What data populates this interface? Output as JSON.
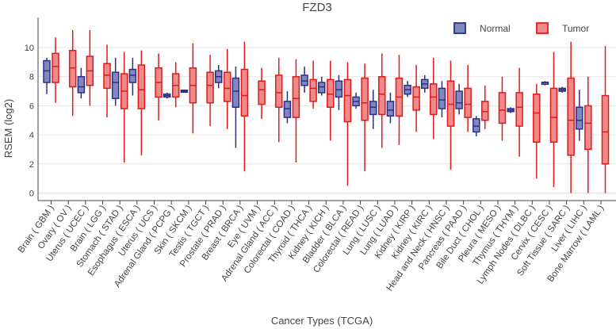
{
  "chart_data": {
    "type": "box",
    "title": "FZD3",
    "xlabel": "Cancer Types (TCGA)",
    "ylabel": "RSEM (log2)",
    "ylim": [
      -0.6,
      11.6
    ],
    "yticks": [
      0,
      2,
      4,
      6,
      8,
      10
    ],
    "grid": true,
    "legend_position": "top-right",
    "colors": {
      "normal_stroke": "#2a2f86",
      "normal_fill": "#8188c0",
      "tumor_stroke": "#e2191b",
      "tumor_fill": "#ef8a8a",
      "grid": "#e6e6e6",
      "axis": "#444444"
    },
    "series": [
      {
        "name": "Normal",
        "key": "normal"
      },
      {
        "name": "Tumor",
        "key": "tumor"
      }
    ],
    "categories": [
      {
        "label": "Brain ( GBM )",
        "normal": [
          6.8,
          7.6,
          8.4,
          9.1,
          9.3
        ],
        "tumor": [
          6.2,
          7.6,
          8.7,
          9.6,
          10.7
        ]
      },
      {
        "label": "Ovary ( OV )",
        "normal": null,
        "tumor": [
          5.3,
          7.3,
          8.6,
          9.8,
          11.2
        ]
      },
      {
        "label": "Uterus ( UCEC )",
        "normal": [
          6.5,
          6.9,
          7.3,
          8.0,
          8.6
        ],
        "tumor": [
          6.0,
          7.4,
          8.4,
          9.4,
          11.2
        ]
      },
      {
        "label": "Brain ( LGG )",
        "normal": null,
        "tumor": [
          5.2,
          7.2,
          8.1,
          8.9,
          10.2
        ]
      },
      {
        "label": "Stomach ( STAD )",
        "normal": [
          6.0,
          6.5,
          7.6,
          8.3,
          9.3
        ],
        "tumor": [
          2.1,
          5.8,
          7.0,
          8.2,
          9.7
        ]
      },
      {
        "label": "Esophagus ( ESCA )",
        "normal": [
          6.7,
          7.6,
          8.1,
          8.5,
          9.3
        ],
        "tumor": [
          2.6,
          5.8,
          7.1,
          8.8,
          9.8
        ]
      },
      {
        "label": "Uterus ( UCS )",
        "normal": null,
        "tumor": [
          5.0,
          6.6,
          7.6,
          8.6,
          9.6
        ]
      },
      {
        "label": "Adrenal Gland ( PCPG )",
        "normal": [
          6.5,
          6.6,
          6.7,
          6.8,
          6.9
        ],
        "tumor": [
          5.9,
          6.6,
          7.4,
          8.2,
          9.0
        ]
      },
      {
        "label": "Skin ( SKCM )",
        "normal": [
          7.0,
          7.0,
          7.0,
          7.0,
          7.0
        ],
        "tumor": [
          4.1,
          6.2,
          7.4,
          8.6,
          10.3
        ]
      },
      {
        "label": "Testis ( TGCT )",
        "normal": null,
        "tumor": [
          4.6,
          6.2,
          7.4,
          8.3,
          9.5
        ]
      },
      {
        "label": "Prostate ( PRAD )",
        "normal": [
          7.2,
          7.6,
          8.0,
          8.4,
          8.8
        ],
        "tumor": [
          4.4,
          6.3,
          7.2,
          8.3,
          9.9
        ]
      },
      {
        "label": "Breast ( BRCA )",
        "normal": [
          3.1,
          5.9,
          7.0,
          7.9,
          8.7
        ],
        "tumor": [
          1.5,
          5.3,
          6.7,
          8.5,
          10.4
        ]
      },
      {
        "label": "Eye ( UVM )",
        "normal": null,
        "tumor": [
          5.1,
          6.1,
          7.1,
          7.7,
          8.6
        ]
      },
      {
        "label": "Adrenal Gland ( ACC )",
        "normal": null,
        "tumor": [
          3.5,
          5.9,
          6.9,
          8.1,
          9.3
        ]
      },
      {
        "label": "Colorectal ( COAD )",
        "normal": [
          4.8,
          5.2,
          5.8,
          6.3,
          7.0
        ],
        "tumor": [
          2.1,
          5.2,
          6.5,
          8.0,
          9.2
        ]
      },
      {
        "label": "Thyroid ( THCA )",
        "normal": [
          6.9,
          7.4,
          7.7,
          8.1,
          8.7
        ],
        "tumor": [
          5.8,
          6.3,
          7.2,
          7.8,
          9.1
        ]
      },
      {
        "label": "Kidney ( KICH )",
        "normal": [
          6.7,
          6.9,
          7.3,
          7.6,
          8.0
        ],
        "tumor": [
          3.6,
          5.9,
          6.8,
          7.8,
          9.1
        ]
      },
      {
        "label": "Bladder ( BLCA )",
        "normal": [
          5.7,
          6.6,
          7.1,
          7.7,
          8.1
        ],
        "tumor": [
          0.5,
          4.9,
          6.7,
          7.8,
          9.0
        ]
      },
      {
        "label": "Colorectal ( READ )",
        "normal": [
          5.8,
          6.0,
          6.3,
          6.6,
          6.9
        ],
        "tumor": [
          1.5,
          5.0,
          6.2,
          7.9,
          8.9
        ]
      },
      {
        "label": "Lung ( LUSC )",
        "normal": [
          4.4,
          5.4,
          5.9,
          6.3,
          7.1
        ],
        "tumor": [
          3.1,
          5.4,
          6.8,
          8.0,
          9.6
        ]
      },
      {
        "label": "Lung ( LUAD )",
        "normal": [
          4.8,
          5.3,
          5.7,
          6.3,
          6.9
        ],
        "tumor": [
          3.3,
          5.3,
          6.6,
          7.9,
          9.5
        ]
      },
      {
        "label": "Kidney ( KIRP )",
        "normal": [
          6.6,
          6.8,
          7.1,
          7.4,
          7.7
        ],
        "tumor": [
          4.2,
          5.7,
          6.6,
          7.3,
          8.8
        ]
      },
      {
        "label": "Kidney ( KIRC )",
        "normal": [
          6.9,
          7.2,
          7.5,
          7.8,
          8.1
        ],
        "tumor": [
          3.7,
          5.4,
          6.6,
          7.5,
          9.3
        ]
      },
      {
        "label": "Head and Neck ( HNSC )",
        "normal": [
          5.2,
          5.8,
          6.4,
          7.2,
          7.7
        ],
        "tumor": [
          1.6,
          4.6,
          6.1,
          7.7,
          9.1
        ]
      },
      {
        "label": "Pancreas ( PAAD )",
        "normal": [
          5.4,
          5.8,
          6.2,
          7.0,
          7.5
        ],
        "tumor": [
          4.2,
          5.2,
          6.1,
          7.2,
          8.8
        ]
      },
      {
        "label": "Bile Duct ( CHOL )",
        "normal": [
          3.9,
          4.2,
          4.6,
          5.1,
          5.3
        ],
        "tumor": [
          4.4,
          5.0,
          5.6,
          6.3,
          7.4
        ]
      },
      {
        "label": "Pleura ( MESO )",
        "normal": null,
        "tumor": [
          3.6,
          4.8,
          5.7,
          6.9,
          8.0
        ]
      },
      {
        "label": "Thymus ( THYM )",
        "normal": [
          5.5,
          5.6,
          5.7,
          5.8,
          5.9
        ],
        "tumor": [
          2.5,
          4.6,
          5.9,
          6.9,
          8.6
        ]
      },
      {
        "label": "Lymph Nodes ( DLBC )",
        "normal": null,
        "tumor": [
          1.0,
          3.5,
          5.5,
          6.8,
          7.5
        ]
      },
      {
        "label": "Cervix ( CESC )",
        "normal": [
          7.4,
          7.5,
          7.6,
          7.6,
          7.7
        ],
        "tumor": [
          0.4,
          3.5,
          5.2,
          7.2,
          9.7
        ]
      },
      {
        "label": "Soft Tissue ( SARC )",
        "normal": [
          6.9,
          7.0,
          7.1,
          7.2,
          7.3
        ],
        "tumor": [
          0.0,
          2.6,
          5.0,
          7.9,
          10.4
        ]
      },
      {
        "label": "Liver ( LIHC )",
        "normal": [
          3.6,
          4.4,
          5.0,
          5.9,
          7.1
        ],
        "tumor": [
          0.0,
          3.0,
          4.8,
          6.0,
          8.0
        ]
      },
      {
        "label": "Bone Marrow ( LAML )",
        "normal": null,
        "tumor": [
          0.0,
          2.0,
          4.2,
          6.7,
          10.1
        ]
      }
    ]
  }
}
